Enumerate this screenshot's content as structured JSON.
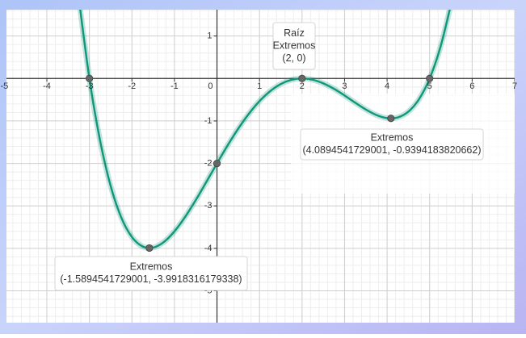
{
  "chart_data": {
    "type": "line",
    "x": [
      -3.25,
      -3,
      -2.75,
      -2.5,
      -2.25,
      -2,
      -1.75,
      -1.5,
      -1.25,
      -1,
      -0.75,
      -0.5,
      -0.25,
      0,
      0.25,
      0.5,
      0.75,
      1,
      1.25,
      1.5,
      1.75,
      2,
      2.25,
      2.5,
      2.75,
      3,
      3.25,
      3.5,
      3.75,
      4,
      4.25,
      4.5,
      4.75,
      5,
      5.25,
      5.5
    ],
    "series": [
      {
        "color": "#10977a",
        "values": [
          1.895,
          0,
          -1.457,
          -2.531,
          -3.274,
          -3.733,
          -3.955,
          -3.981,
          -3.851,
          -3.6,
          -3.261,
          -2.865,
          -2.436,
          -2,
          -1.576,
          -1.181,
          -0.83,
          -0.533,
          -0.299,
          -0.131,
          -0.032,
          0,
          -0.03,
          -0.115,
          -0.243,
          -0.4,
          -0.57,
          -0.731,
          -0.861,
          -0.933,
          -0.918,
          -0.781,
          -0.488,
          0,
          0.726,
          1.735
        ]
      }
    ],
    "points": {
      "color": "#666666",
      "x": [
        -3,
        -1.5894541729001,
        0,
        2,
        4.0894541729001,
        5
      ],
      "y": [
        0,
        -3.9918316179338,
        -2,
        0,
        -0.9394183820662,
        0
      ]
    },
    "annotations": [
      {
        "lines": [
          "Raíz",
          "Extremos",
          "(2, 0)"
        ]
      },
      {
        "lines": [
          "Extremos",
          "(4.0894541729001, -0.9394183820662)"
        ]
      },
      {
        "lines": [
          "Extremos",
          "(-1.5894541729001, -3.9918316179338)"
        ]
      }
    ],
    "xlim": [
      -4.95,
      7.0
    ],
    "ylim": [
      -5.75,
      1.62
    ],
    "xticks": [
      -5,
      -4,
      -3,
      -2,
      -1,
      0,
      1,
      2,
      3,
      4,
      5,
      6,
      7
    ],
    "yticks": [
      -5,
      -4,
      -3,
      -2,
      -1,
      1
    ],
    "grid": true,
    "minor_divisions": 5
  }
}
